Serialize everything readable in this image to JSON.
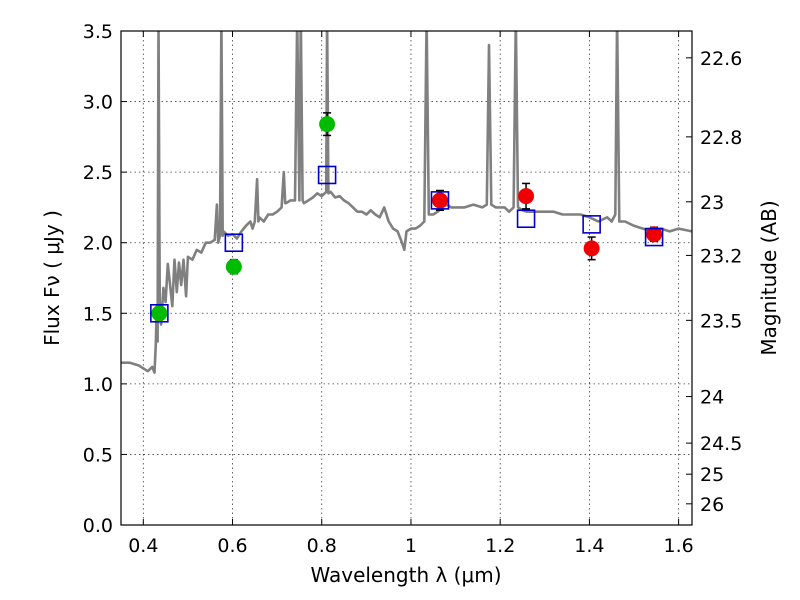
{
  "chart_data": {
    "type": "scatter",
    "xlabel": "Wavelength  λ (μm)",
    "ylabel": "Flux  Fν  ( μJy )",
    "y2label": "Magnitude (AB)",
    "xlim": [
      0.35,
      1.63
    ],
    "ylim": [
      0,
      3.5
    ],
    "x_ticks": [
      0.4,
      0.6,
      0.8,
      1.0,
      1.2,
      1.4,
      1.6
    ],
    "x_tick_labels": [
      "0.4",
      "0.6",
      "0.8",
      "1",
      "1.2",
      "1.4",
      "1.6"
    ],
    "y_ticks": [
      0,
      0.5,
      1.0,
      1.5,
      2.0,
      2.5,
      3.0,
      3.5
    ],
    "y_tick_labels": [
      "0.0",
      "0.5",
      "1.0",
      "1.5",
      "2.0",
      "2.5",
      "3.0",
      "3.5"
    ],
    "y2_ticks": [
      {
        "label": "22.6",
        "flux": 3.31
      },
      {
        "label": "22.8",
        "flux": 2.75
      },
      {
        "label": "23",
        "flux": 2.29
      },
      {
        "label": "23.2",
        "flux": 1.91
      },
      {
        "label": "23.5",
        "flux": 1.45
      },
      {
        "label": "24",
        "flux": 0.91
      },
      {
        "label": "24.5",
        "flux": 0.58
      },
      {
        "label": "25",
        "flux": 0.36
      },
      {
        "label": "26",
        "flux": 0.15
      }
    ],
    "grid": true,
    "colors": {
      "spectrum": "#808080",
      "optical": "#00bb00",
      "nir": "#ee0000",
      "model": "#0000cc",
      "errorbar": "#000000"
    },
    "series": [
      {
        "style": "line",
        "color": "#808080",
        "points": [
          [
            0.35,
            1.15
          ],
          [
            0.37,
            1.15
          ],
          [
            0.39,
            1.13
          ],
          [
            0.41,
            1.09
          ],
          [
            0.42,
            1.12
          ],
          [
            0.425,
            1.08
          ],
          [
            0.428,
            1.28
          ],
          [
            0.43,
            1.55
          ],
          [
            0.432,
            1.3
          ],
          [
            0.434,
            3.6
          ],
          [
            0.437,
            1.5
          ],
          [
            0.44,
            1.42
          ],
          [
            0.445,
            1.68
          ],
          [
            0.45,
            1.58
          ],
          [
            0.455,
            1.85
          ],
          [
            0.46,
            1.7
          ],
          [
            0.465,
            1.55
          ],
          [
            0.47,
            1.88
          ],
          [
            0.475,
            1.65
          ],
          [
            0.48,
            1.86
          ],
          [
            0.485,
            1.7
          ],
          [
            0.49,
            1.88
          ],
          [
            0.496,
            1.62
          ],
          [
            0.5,
            1.9
          ],
          [
            0.51,
            1.88
          ],
          [
            0.52,
            1.95
          ],
          [
            0.53,
            1.93
          ],
          [
            0.54,
            2.0
          ],
          [
            0.55,
            2.0
          ],
          [
            0.56,
            2.02
          ],
          [
            0.565,
            2.27
          ],
          [
            0.568,
            2.0
          ],
          [
            0.572,
            2.05
          ],
          [
            0.575,
            3.6
          ],
          [
            0.578,
            2.05
          ],
          [
            0.58,
            2.08
          ],
          [
            0.59,
            2.05
          ],
          [
            0.6,
            2.06
          ],
          [
            0.61,
            2.03
          ],
          [
            0.62,
            2.08
          ],
          [
            0.63,
            2.12
          ],
          [
            0.64,
            2.15
          ],
          [
            0.645,
            2.1
          ],
          [
            0.65,
            2.15
          ],
          [
            0.655,
            2.45
          ],
          [
            0.658,
            2.15
          ],
          [
            0.66,
            2.18
          ],
          [
            0.67,
            2.15
          ],
          [
            0.68,
            2.2
          ],
          [
            0.69,
            2.2
          ],
          [
            0.7,
            2.22
          ],
          [
            0.71,
            2.25
          ],
          [
            0.715,
            2.5
          ],
          [
            0.718,
            2.28
          ],
          [
            0.72,
            2.28
          ],
          [
            0.73,
            2.3
          ],
          [
            0.74,
            2.3
          ],
          [
            0.745,
            3.6
          ],
          [
            0.75,
            2.3
          ],
          [
            0.753,
            3.6
          ],
          [
            0.757,
            2.3
          ],
          [
            0.76,
            2.28
          ],
          [
            0.77,
            2.3
          ],
          [
            0.78,
            2.32
          ],
          [
            0.79,
            2.35
          ],
          [
            0.8,
            2.33
          ],
          [
            0.81,
            2.36
          ],
          [
            0.812,
            3.6
          ],
          [
            0.815,
            2.35
          ],
          [
            0.82,
            2.36
          ],
          [
            0.83,
            2.32
          ],
          [
            0.84,
            2.33
          ],
          [
            0.85,
            2.3
          ],
          [
            0.86,
            2.28
          ],
          [
            0.87,
            2.25
          ],
          [
            0.88,
            2.22
          ],
          [
            0.89,
            2.22
          ],
          [
            0.9,
            2.2
          ],
          [
            0.91,
            2.23
          ],
          [
            0.92,
            2.2
          ],
          [
            0.93,
            2.18
          ],
          [
            0.94,
            2.25
          ],
          [
            0.95,
            2.15
          ],
          [
            0.96,
            2.1
          ],
          [
            0.97,
            2.08
          ],
          [
            0.98,
            2.0
          ],
          [
            0.985,
            1.95
          ],
          [
            0.99,
            2.08
          ],
          [
            1.0,
            2.1
          ],
          [
            1.01,
            2.1
          ],
          [
            1.02,
            2.12
          ],
          [
            1.03,
            2.15
          ],
          [
            1.035,
            3.6
          ],
          [
            1.04,
            2.2
          ],
          [
            1.05,
            2.2
          ],
          [
            1.06,
            2.22
          ],
          [
            1.07,
            2.25
          ],
          [
            1.08,
            2.27
          ],
          [
            1.09,
            2.25
          ],
          [
            1.1,
            2.25
          ],
          [
            1.12,
            2.25
          ],
          [
            1.14,
            2.27
          ],
          [
            1.16,
            2.25
          ],
          [
            1.17,
            2.27
          ],
          [
            1.175,
            3.4
          ],
          [
            1.18,
            2.27
          ],
          [
            1.19,
            2.25
          ],
          [
            1.2,
            2.25
          ],
          [
            1.21,
            2.25
          ],
          [
            1.22,
            2.22
          ],
          [
            1.23,
            2.25
          ],
          [
            1.235,
            3.6
          ],
          [
            1.24,
            2.25
          ],
          [
            1.25,
            2.23
          ],
          [
            1.26,
            2.22
          ],
          [
            1.28,
            2.22
          ],
          [
            1.3,
            2.22
          ],
          [
            1.32,
            2.22
          ],
          [
            1.34,
            2.2
          ],
          [
            1.36,
            2.2
          ],
          [
            1.38,
            2.2
          ],
          [
            1.4,
            2.18
          ],
          [
            1.42,
            2.15
          ],
          [
            1.44,
            2.18
          ],
          [
            1.45,
            2.15
          ],
          [
            1.458,
            2.2
          ],
          [
            1.462,
            3.6
          ],
          [
            1.467,
            2.15
          ],
          [
            1.48,
            2.15
          ],
          [
            1.5,
            2.12
          ],
          [
            1.52,
            2.1
          ],
          [
            1.54,
            2.08
          ],
          [
            1.56,
            2.1
          ],
          [
            1.58,
            2.08
          ],
          [
            1.6,
            2.1
          ],
          [
            1.63,
            2.08
          ]
        ]
      },
      {
        "style": "marker",
        "marker": "circle",
        "color": "#00bb00",
        "points": [
          {
            "x": 0.436,
            "y": 1.5,
            "err": 0.04
          },
          {
            "x": 0.603,
            "y": 1.83,
            "err": 0.05
          },
          {
            "x": 0.812,
            "y": 2.84,
            "err": 0.08
          }
        ]
      },
      {
        "style": "marker",
        "marker": "circle",
        "color": "#ee0000",
        "points": [
          {
            "x": 1.065,
            "y": 2.3,
            "err": 0.07
          },
          {
            "x": 1.258,
            "y": 2.33,
            "err": 0.09
          },
          {
            "x": 1.405,
            "y": 1.96,
            "err": 0.08
          },
          {
            "x": 1.545,
            "y": 2.06,
            "err": 0.05
          }
        ]
      },
      {
        "style": "marker",
        "marker": "open-square",
        "color": "#0000cc",
        "points": [
          {
            "x": 0.436,
            "y": 1.5
          },
          {
            "x": 0.603,
            "y": 2.0
          },
          {
            "x": 0.812,
            "y": 2.48
          },
          {
            "x": 1.065,
            "y": 2.3
          },
          {
            "x": 1.258,
            "y": 2.17
          },
          {
            "x": 1.405,
            "y": 2.13
          },
          {
            "x": 1.545,
            "y": 2.04
          }
        ]
      }
    ]
  }
}
